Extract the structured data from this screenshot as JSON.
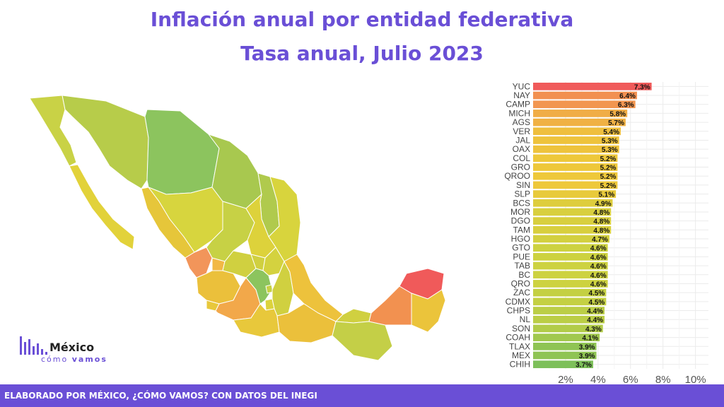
{
  "title": {
    "line1": "Inflación anual por entidad federativa",
    "line2": "Tasa anual, Julio 2023"
  },
  "footer": "ELABORADO POR MÉXICO, ¿CÓMO VAMOS? CON DATOS DEL INEGI",
  "logo": {
    "name": "México",
    "sub_a": "cómo",
    "sub_b": "vamos"
  },
  "colors": {
    "accent": "#6a4fd6",
    "high": "#f05a5a",
    "mid": "#f5c542",
    "low": "#7dc05a"
  },
  "chart_data": {
    "type": "bar",
    "orientation": "horizontal",
    "categories": [
      "YUC",
      "NAY",
      "CAMP",
      "MICH",
      "AGS",
      "VER",
      "JAL",
      "OAX",
      "COL",
      "GRO",
      "QROO",
      "SIN",
      "SLP",
      "BCS",
      "MOR",
      "DGO",
      "TAM",
      "HGO",
      "GTO",
      "PUE",
      "TAB",
      "BC",
      "QRO",
      "ZAC",
      "CDMX",
      "CHPS",
      "NL",
      "SON",
      "COAH",
      "TLAX",
      "MEX",
      "CHIH"
    ],
    "values": [
      7.3,
      6.4,
      6.3,
      5.8,
      5.7,
      5.4,
      5.3,
      5.3,
      5.2,
      5.2,
      5.2,
      5.2,
      5.1,
      4.9,
      4.8,
      4.8,
      4.8,
      4.7,
      4.6,
      4.6,
      4.6,
      4.6,
      4.6,
      4.5,
      4.5,
      4.4,
      4.4,
      4.3,
      4.1,
      3.9,
      3.9,
      3.7
    ],
    "labels": [
      "7.3%",
      "6.4%",
      "6.3%",
      "5.8%",
      "5.7%",
      "5.4%",
      "5.3%",
      "5.3%",
      "5.2%",
      "5.2%",
      "5.2%",
      "5.2%",
      "5.1%",
      "4.9%",
      "4.8%",
      "4.8%",
      "4.8%",
      "4.7%",
      "4.6%",
      "4.6%",
      "4.6%",
      "4.6%",
      "4.6%",
      "4.5%",
      "4.5%",
      "4.4%",
      "4.4%",
      "4.3%",
      "4.1%",
      "3.9%",
      "3.9%",
      "3.7%"
    ],
    "xticks": [
      "2%",
      "4%",
      "6%",
      "8%",
      "10%"
    ],
    "xtick_values": [
      2,
      4,
      6,
      8,
      10
    ],
    "xlim": [
      0,
      10.8
    ],
    "grid": true
  }
}
